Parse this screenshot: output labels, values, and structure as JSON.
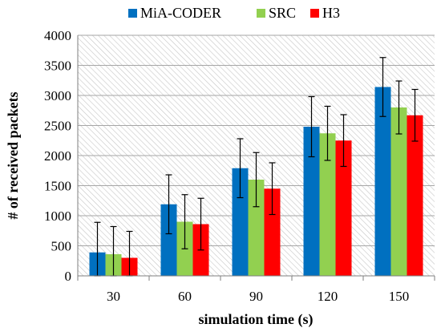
{
  "chart_data": {
    "type": "bar",
    "categories": [
      "30",
      "60",
      "90",
      "120",
      "150"
    ],
    "series": [
      {
        "name": "MiA-CODER",
        "color": "#0070C0",
        "values": [
          390,
          1190,
          1790,
          2480,
          3140
        ],
        "errors": [
          500,
          490,
          490,
          500,
          490
        ]
      },
      {
        "name": "SRC",
        "color": "#92D050",
        "values": [
          360,
          900,
          1600,
          2370,
          2800
        ],
        "errors": [
          460,
          450,
          450,
          450,
          440
        ]
      },
      {
        "name": "H3",
        "color": "#FF0000",
        "values": [
          300,
          860,
          1450,
          2250,
          2670
        ],
        "errors": [
          440,
          430,
          430,
          430,
          430
        ]
      }
    ],
    "xlabel": "simulation time (s)",
    "ylabel": "# of received packets",
    "ylim": [
      0,
      4000
    ],
    "yticks": [
      0,
      500,
      1000,
      1500,
      2000,
      2500,
      3000,
      3500,
      4000
    ],
    "grid": true,
    "legend": "top"
  }
}
